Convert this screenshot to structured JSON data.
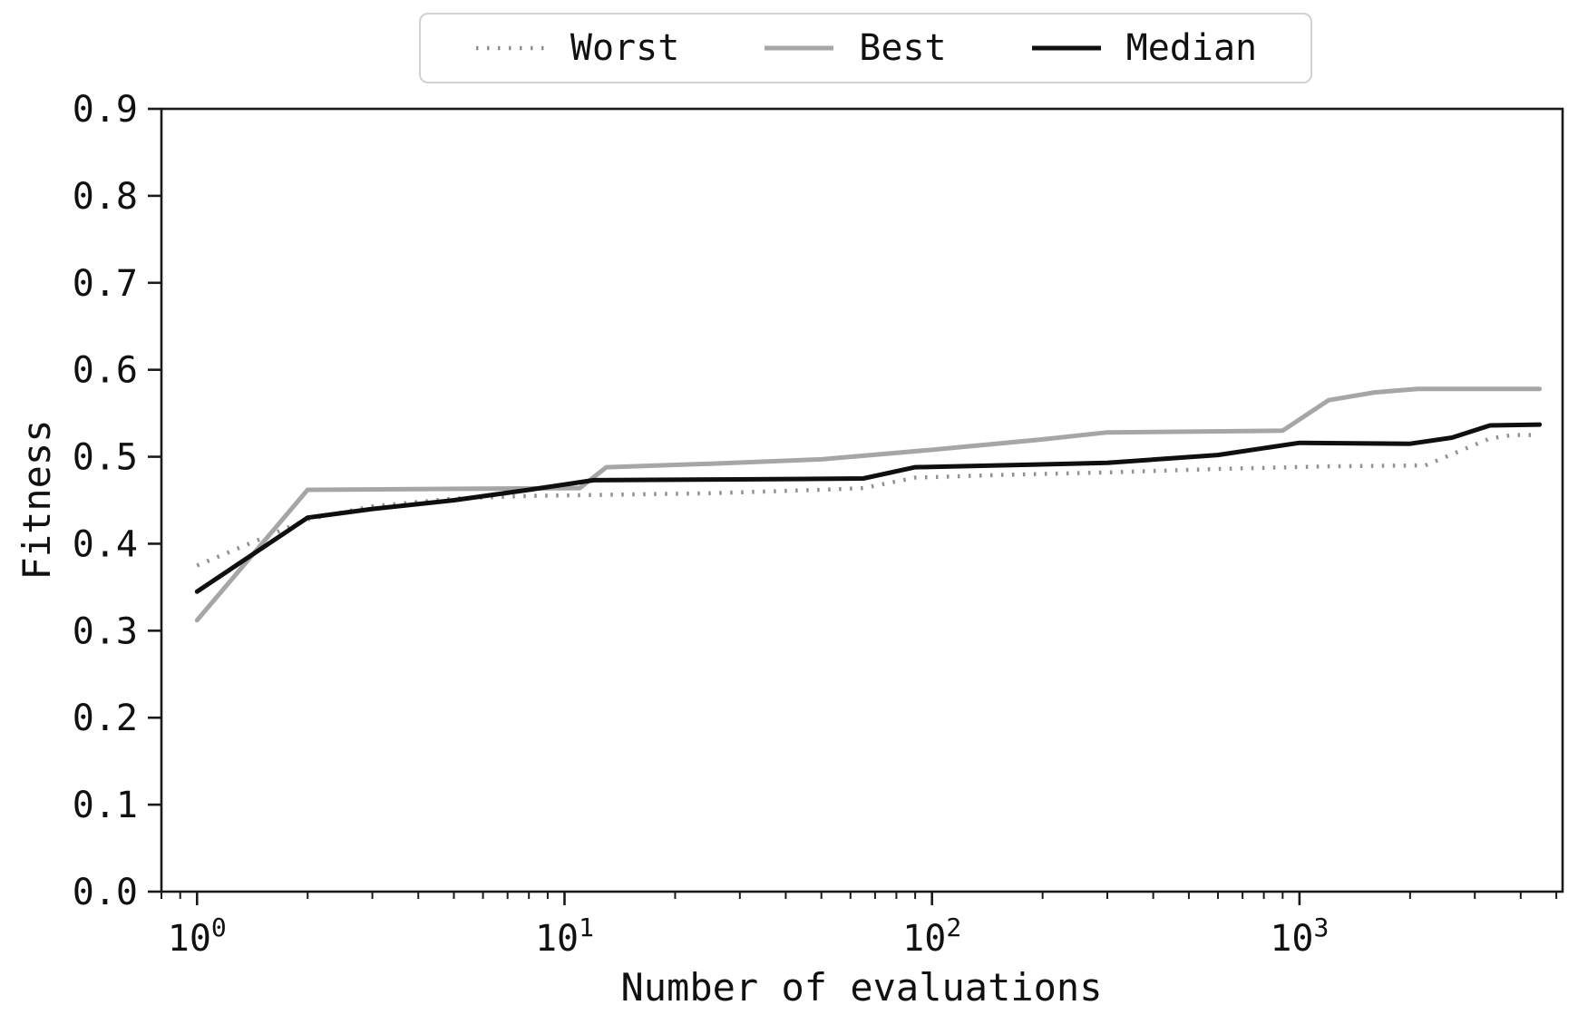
{
  "chart_data": {
    "type": "line",
    "title": "",
    "xlabel": "Number of evaluations",
    "ylabel": "Fitness",
    "x_scale": "log",
    "grid": false,
    "legend_position": "top-center",
    "axis_color": "#1a1a1a",
    "xlim": [
      0.8,
      5200
    ],
    "ylim": [
      0.0,
      0.9
    ],
    "x_major_ticks": [
      {
        "value": 1,
        "base": "10",
        "exp": "0"
      },
      {
        "value": 10,
        "base": "10",
        "exp": "1"
      },
      {
        "value": 100,
        "base": "10",
        "exp": "2"
      },
      {
        "value": 1000,
        "base": "10",
        "exp": "3"
      }
    ],
    "x_minor_ticks": [
      0.8,
      0.9,
      2,
      3,
      4,
      5,
      6,
      7,
      8,
      9,
      20,
      30,
      40,
      50,
      60,
      70,
      80,
      90,
      200,
      300,
      400,
      500,
      600,
      700,
      800,
      900,
      2000,
      3000,
      4000,
      5000
    ],
    "y_ticks": [
      {
        "value": 0.0,
        "label": "0.0"
      },
      {
        "value": 0.1,
        "label": "0.1"
      },
      {
        "value": 0.2,
        "label": "0.2"
      },
      {
        "value": 0.3,
        "label": "0.3"
      },
      {
        "value": 0.4,
        "label": "0.4"
      },
      {
        "value": 0.5,
        "label": "0.5"
      },
      {
        "value": 0.6,
        "label": "0.6"
      },
      {
        "value": 0.7,
        "label": "0.7"
      },
      {
        "value": 0.8,
        "label": "0.8"
      },
      {
        "value": 0.9,
        "label": "0.9"
      }
    ],
    "series": [
      {
        "name": "Worst",
        "style": "dotted",
        "color": "#919191",
        "width": 4.5,
        "points": [
          [
            1,
            0.375
          ],
          [
            2,
            0.428
          ],
          [
            3,
            0.443
          ],
          [
            5,
            0.452
          ],
          [
            8,
            0.455
          ],
          [
            12,
            0.456
          ],
          [
            25,
            0.458
          ],
          [
            50,
            0.462
          ],
          [
            65,
            0.464
          ],
          [
            90,
            0.476
          ],
          [
            150,
            0.479
          ],
          [
            300,
            0.482
          ],
          [
            600,
            0.486
          ],
          [
            1200,
            0.489
          ],
          [
            2200,
            0.49
          ],
          [
            3300,
            0.521
          ],
          [
            3800,
            0.525
          ],
          [
            4500,
            0.525
          ]
        ]
      },
      {
        "name": "Best",
        "style": "solid",
        "color": "#a6a6a6",
        "width": 5,
        "points": [
          [
            1,
            0.312
          ],
          [
            2,
            0.462
          ],
          [
            11,
            0.464
          ],
          [
            13,
            0.488
          ],
          [
            25,
            0.492
          ],
          [
            50,
            0.497
          ],
          [
            100,
            0.508
          ],
          [
            200,
            0.52
          ],
          [
            300,
            0.528
          ],
          [
            900,
            0.53
          ],
          [
            1200,
            0.565
          ],
          [
            1600,
            0.574
          ],
          [
            2100,
            0.578
          ],
          [
            4500,
            0.578
          ]
        ]
      },
      {
        "name": "Median",
        "style": "solid",
        "color": "#0f0f0f",
        "width": 5,
        "points": [
          [
            1,
            0.345
          ],
          [
            2,
            0.43
          ],
          [
            3,
            0.44
          ],
          [
            5,
            0.45
          ],
          [
            8,
            0.462
          ],
          [
            12,
            0.473
          ],
          [
            30,
            0.474
          ],
          [
            65,
            0.475
          ],
          [
            90,
            0.488
          ],
          [
            150,
            0.49
          ],
          [
            300,
            0.493
          ],
          [
            600,
            0.502
          ],
          [
            1000,
            0.516
          ],
          [
            2000,
            0.515
          ],
          [
            2600,
            0.522
          ],
          [
            3300,
            0.536
          ],
          [
            4500,
            0.537
          ]
        ]
      }
    ]
  }
}
